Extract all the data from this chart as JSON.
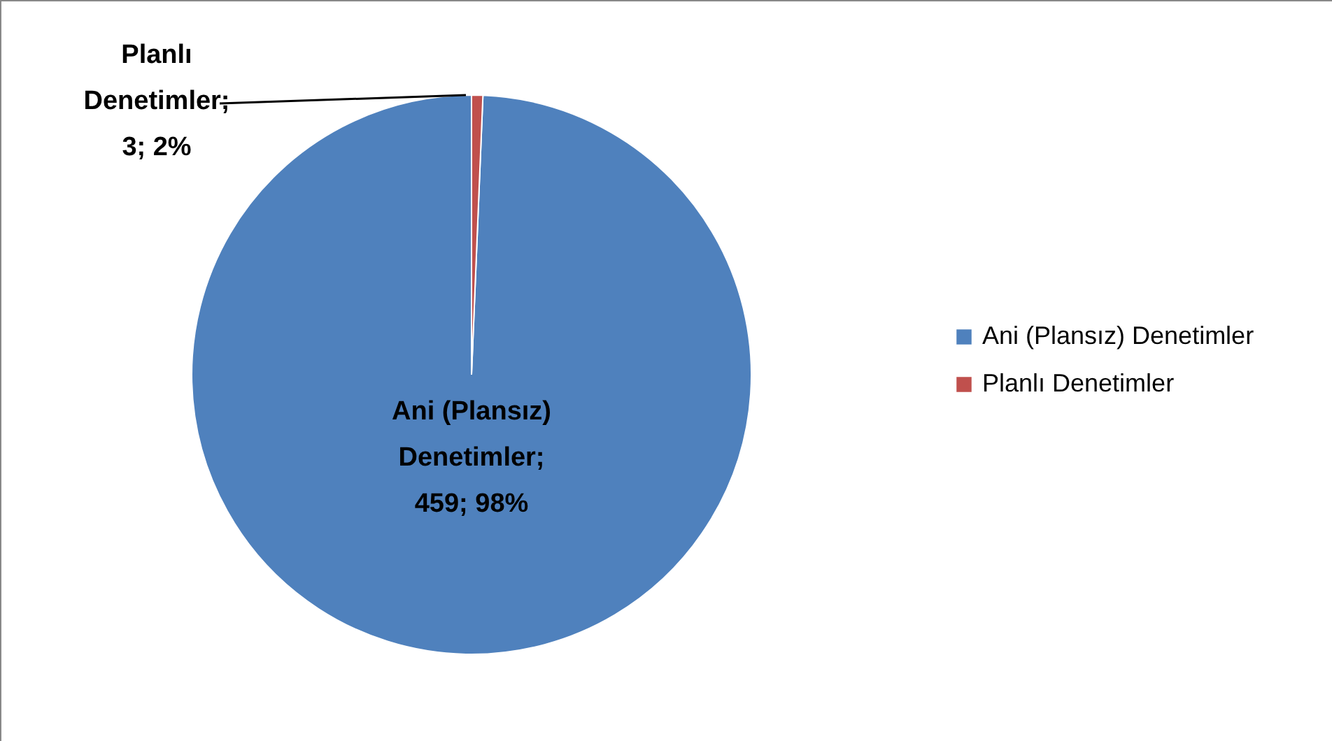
{
  "chart_data": {
    "type": "pie",
    "categories": [
      "Ani (Plansız) Denetimler",
      "Planlı Denetimler"
    ],
    "values": [
      459,
      3
    ],
    "colors": [
      "#4f81bd",
      "#c0504d"
    ],
    "value_labels": [
      "Ani (Plansız)\nDenetimler;\n459; 98%",
      "Planlı\nDenetimler;\n3; 2%"
    ],
    "legend": "right"
  }
}
